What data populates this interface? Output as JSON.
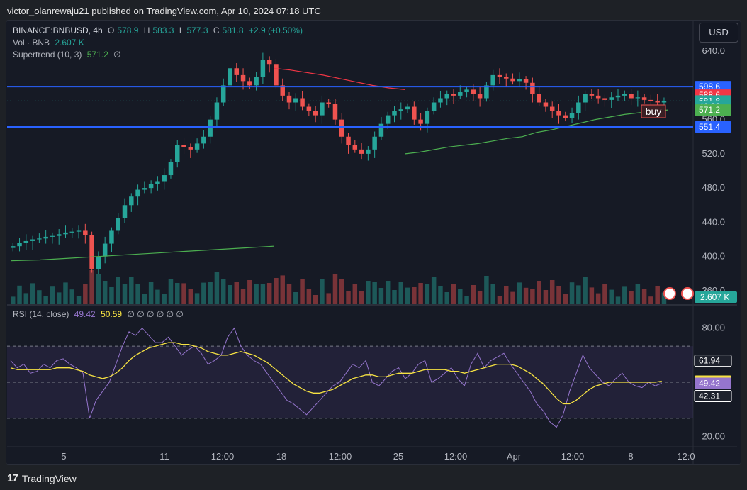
{
  "header": {
    "published": "victor_olanrewaju21 published on TradingView.com, Apr 10, 2024 07:18 UTC"
  },
  "legend": {
    "symbol": "BINANCE:BNBUSD, 4h",
    "o_label": "O",
    "o": "578.9",
    "h_label": "H",
    "h": "583.3",
    "l_label": "L",
    "l": "577.3",
    "c_label": "C",
    "c": "581.8",
    "change": "+2.9 (+0.50%)",
    "vol_label": "Vol · BNB",
    "vol": "2.607 K",
    "st_label": "Supertrend (10, 3)",
    "st": "571.2",
    "st_icon": "∅",
    "rsi_label": "RSI (14, close)",
    "rsi": "49.42",
    "rsi_ma": "50.59",
    "rsi_icons": "∅ ∅ ∅ ∅ ∅ ∅"
  },
  "currency_button": "USD",
  "footer": {
    "brand": "TradingView"
  },
  "colors": {
    "up": "#26a69a",
    "down": "#ef5350",
    "supertrend_up": "#4caf50",
    "supertrend_down": "#f23645",
    "hline": "#2962ff",
    "rsi": "#9575cd",
    "rsi_ma": "#f7e342",
    "background": "#161a25"
  },
  "chart_data": [
    {
      "type": "candlestick",
      "title": "BINANCE:BNBUSD, 4h",
      "y_axis": {
        "ticks": [
          "640.0",
          "600.0",
          "560.0",
          "520.0",
          "480.0",
          "440.0",
          "400.0",
          "360.0"
        ],
        "range": [
          345,
          660
        ]
      },
      "x_axis": {
        "ticks": [
          "5",
          "11",
          "12:00",
          "18",
          "12:00",
          "25",
          "12:00",
          "Apr",
          "12:00",
          "8",
          "12:0"
        ]
      },
      "price_labels": [
        {
          "text": "598.6",
          "value": 598.6,
          "kind": "hline"
        },
        {
          "text": "588.6",
          "value": 588.6,
          "kind": "supertrend_down"
        },
        {
          "text": "581.8",
          "value": 581.8,
          "kind": "last"
        },
        {
          "text": "41:06",
          "value": 575.5,
          "kind": "countdown"
        },
        {
          "text": "571.2",
          "value": 571.2,
          "kind": "supertrend_up"
        },
        {
          "text": "551.4",
          "value": 551.4,
          "kind": "hline"
        }
      ],
      "volume_label": "2.607 K",
      "annotation": "buy",
      "horizontal_lines": [
        598.6,
        551.4
      ],
      "close_series": [
        412,
        416,
        418,
        420,
        421,
        423,
        424,
        426,
        428,
        429,
        430,
        425,
        385,
        400,
        415,
        430,
        445,
        460,
        470,
        478,
        480,
        485,
        488,
        495,
        510,
        530,
        528,
        525,
        532,
        540,
        560,
        580,
        600,
        620,
        612,
        605,
        600,
        610,
        630,
        625,
        600,
        588,
        580,
        585,
        575,
        570,
        565,
        580,
        578,
        560,
        540,
        530,
        525,
        520,
        525,
        540,
        555,
        565,
        570,
        572,
        575,
        560,
        555,
        570,
        580,
        585,
        590,
        588,
        592,
        595,
        590,
        585,
        600,
        612,
        610,
        608,
        605,
        607,
        603,
        590,
        580,
        575,
        570,
        565,
        562,
        568,
        580,
        590,
        588,
        585,
        583,
        586,
        588,
        590,
        585,
        586,
        583,
        582,
        580,
        581.8
      ],
      "supertrend": [
        {
          "segment": "up",
          "values": [
            395,
            396,
            398,
            400,
            402,
            404,
            406,
            408,
            410,
            412
          ]
        },
        {
          "segment": "down",
          "values": [
            620,
            618,
            615,
            612,
            608,
            604,
            600,
            597,
            595
          ]
        },
        {
          "segment": "up",
          "values": [
            520,
            522,
            525,
            528,
            530,
            532,
            535,
            538,
            540,
            545,
            548,
            552,
            556,
            560,
            563,
            566,
            568,
            570,
            571.2
          ]
        }
      ]
    },
    {
      "type": "line",
      "title": "RSI (14, close)",
      "y_axis": {
        "ticks": [
          "80.00",
          "20.00"
        ],
        "range": [
          15,
          85
        ]
      },
      "levels": [
        70,
        50,
        30
      ],
      "value_labels": [
        {
          "text": "61.94",
          "value": 61.94
        },
        {
          "text": "50.59",
          "value": 50.59
        },
        {
          "text": "49.42",
          "value": 49.42
        },
        {
          "text": "42.31",
          "value": 42.31
        }
      ],
      "series": [
        {
          "name": "RSI",
          "values": [
            62,
            58,
            60,
            55,
            56,
            60,
            58,
            62,
            63,
            60,
            58,
            55,
            30,
            40,
            45,
            50,
            60,
            70,
            78,
            76,
            80,
            76,
            72,
            72,
            75,
            70,
            65,
            68,
            70,
            66,
            60,
            62,
            65,
            75,
            80,
            70,
            65,
            62,
            60,
            55,
            50,
            45,
            40,
            38,
            35,
            32,
            36,
            40,
            44,
            48,
            50,
            55,
            60,
            58,
            62,
            50,
            48,
            52,
            56,
            58,
            52,
            55,
            60,
            62,
            50,
            52,
            55,
            58,
            52,
            48,
            60,
            66,
            58,
            62,
            64,
            66,
            60,
            55,
            50,
            45,
            38,
            34,
            28,
            25,
            32,
            45,
            55,
            65,
            58,
            54,
            50,
            48,
            52,
            55,
            50,
            48,
            47,
            50,
            48,
            49.42
          ]
        },
        {
          "name": "RSI MA",
          "values": [
            58,
            57,
            57,
            57,
            57,
            57,
            57,
            58,
            58,
            58,
            57,
            56,
            54,
            53,
            52,
            53,
            55,
            58,
            62,
            65,
            67,
            69,
            70,
            71,
            72,
            72,
            71,
            71,
            70,
            69,
            67,
            66,
            65,
            65,
            66,
            67,
            66,
            65,
            63,
            61,
            58,
            55,
            52,
            49,
            47,
            45,
            44,
            44,
            45,
            46,
            48,
            50,
            52,
            53,
            54,
            54,
            53,
            53,
            54,
            55,
            55,
            55,
            56,
            57,
            57,
            57,
            57,
            56,
            56,
            55,
            56,
            57,
            58,
            59,
            60,
            60,
            60,
            59,
            57,
            55,
            52,
            49,
            45,
            41,
            38,
            38,
            40,
            43,
            46,
            48,
            49,
            50,
            50,
            50,
            50,
            50,
            50,
            50,
            50,
            50.59
          ]
        }
      ]
    }
  ]
}
